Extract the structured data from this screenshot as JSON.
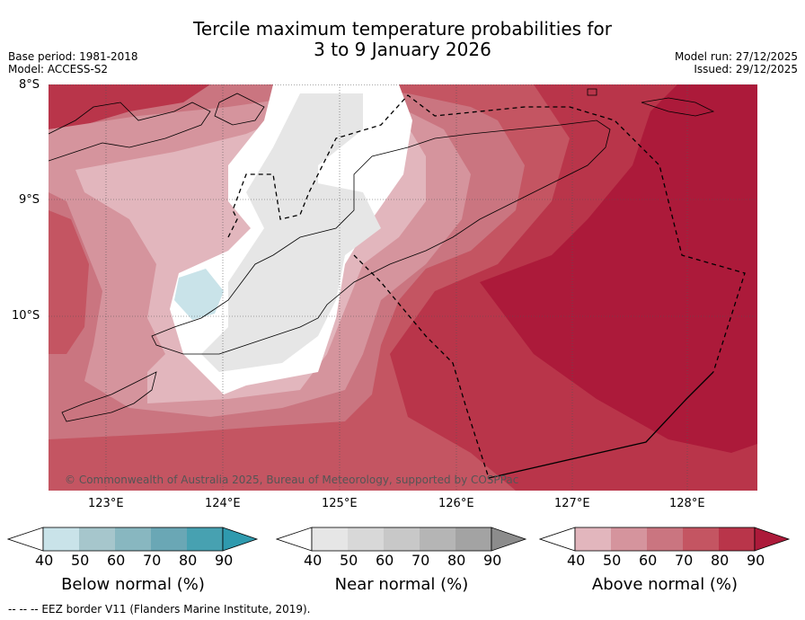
{
  "title_line1": "Tercile maximum temperature probabilities for",
  "title_line2": "3 to 9 January 2026",
  "base_period": "Base period: 1981-2018",
  "model": "Model: ACCESS-S2",
  "model_run": "Model run: 27/12/2025",
  "issued": "Issued: 29/12/2025",
  "lat_labels": [
    "8°S",
    "9°S",
    "10°S"
  ],
  "lon_labels": [
    "123°E",
    "124°E",
    "125°E",
    "126°E",
    "127°E",
    "128°E"
  ],
  "copyright": "© Commonwealth of Australia 2025, Bureau of Meteorology, supported by COSPPac",
  "legends": [
    {
      "title": "Below normal (%)",
      "ticks": [
        "40",
        "50",
        "60",
        "70",
        "80",
        "90"
      ],
      "colors": [
        "#c9e3e9",
        "#a6c6cc",
        "#88b7c0",
        "#6aa7b5",
        "#47a1b1",
        "#2f9aae"
      ]
    },
    {
      "title": "Near normal (%)",
      "ticks": [
        "40",
        "50",
        "60",
        "70",
        "80",
        "90"
      ],
      "colors": [
        "#e6e6e6",
        "#d8d8d8",
        "#c8c8c8",
        "#b5b5b5",
        "#a3a3a3",
        "#8c8c8c"
      ]
    },
    {
      "title": "Above normal (%)",
      "ticks": [
        "40",
        "50",
        "60",
        "70",
        "80",
        "90"
      ],
      "colors": [
        "#e2b6bd",
        "#d5949d",
        "#ca7580",
        "#c45562",
        "#b9354a",
        "#ac1a3a"
      ]
    }
  ],
  "footer": "--  --  -- EEZ border V11 (Flanders Marine Institute, 2019)."
}
